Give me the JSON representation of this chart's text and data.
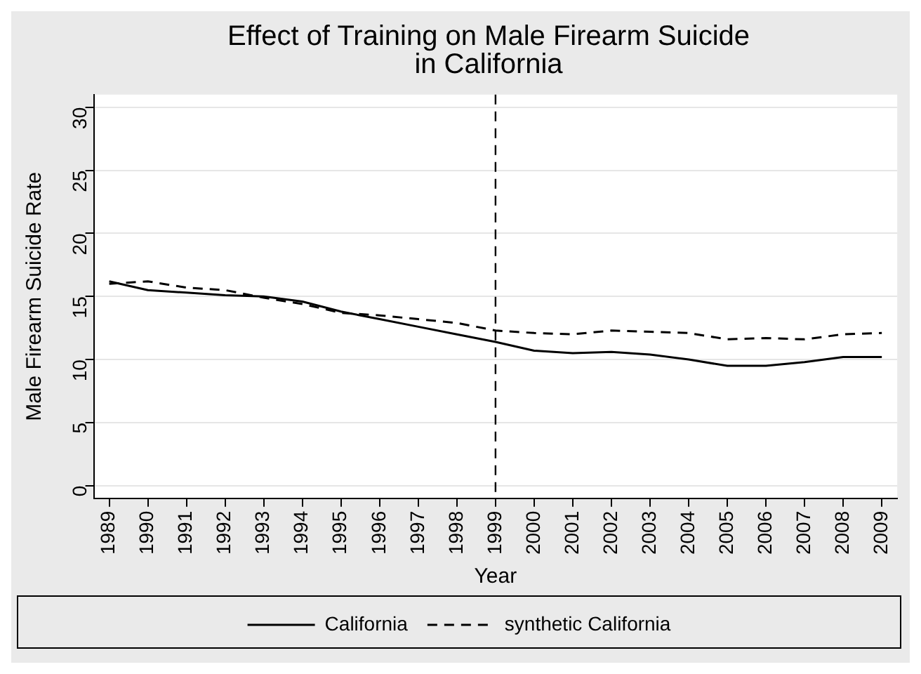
{
  "chart_data": {
    "type": "line",
    "title": "Effect of Training on Male Firearm Suicide in California",
    "xlabel": "Year",
    "ylabel": "Male Firearm Suicide Rate",
    "x": [
      1989,
      1990,
      1991,
      1992,
      1993,
      1994,
      1995,
      1996,
      1997,
      1998,
      1999,
      2000,
      2001,
      2002,
      2003,
      2004,
      2005,
      2006,
      2007,
      2008,
      2009
    ],
    "series": [
      {
        "name": "California",
        "color": "#000000",
        "line_style": "solid",
        "values": [
          16.2,
          15.5,
          15.3,
          15.1,
          15.0,
          14.6,
          13.8,
          13.2,
          12.6,
          12.0,
          11.4,
          10.7,
          10.5,
          10.6,
          10.4,
          10.0,
          9.5,
          9.5,
          9.8,
          10.2,
          10.2
        ]
      },
      {
        "name": "synthetic California",
        "color": "#000000",
        "line_style": "dashed",
        "values": [
          16.0,
          16.2,
          15.7,
          15.5,
          14.9,
          14.4,
          13.7,
          13.5,
          13.2,
          12.9,
          12.3,
          12.1,
          12.0,
          12.3,
          12.2,
          12.1,
          11.6,
          11.7,
          11.6,
          12.0,
          12.1
        ]
      }
    ],
    "xlim": [
      1988.6,
      2009.4
    ],
    "xticks": [
      1989,
      1990,
      1991,
      1992,
      1993,
      1994,
      1995,
      1996,
      1997,
      1998,
      1999,
      2000,
      2001,
      2002,
      2003,
      2004,
      2005,
      2006,
      2007,
      2008,
      2009
    ],
    "ylim": [
      -1,
      31
    ],
    "yticks": [
      0,
      5,
      10,
      15,
      20,
      25,
      30
    ],
    "ref_lines": [
      {
        "axis": "x",
        "value": 1999,
        "line_style": "dashed",
        "color": "#000000"
      }
    ],
    "grid": "y",
    "legend": "bottom",
    "marker": "none"
  }
}
